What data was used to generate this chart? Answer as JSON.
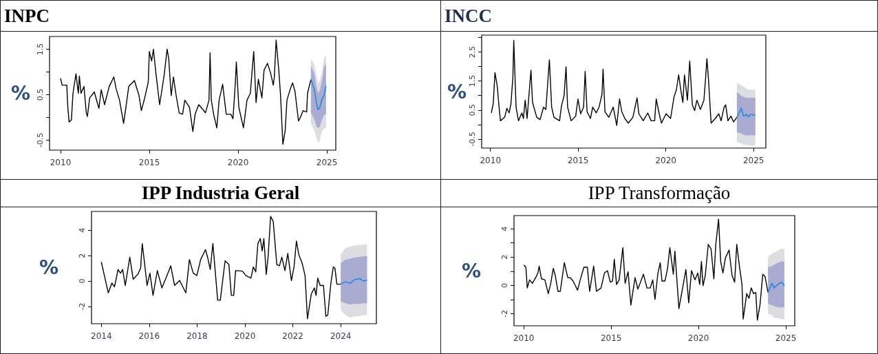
{
  "chart_data": [
    {
      "type": "line",
      "title": "INPC",
      "ylabel": "%",
      "xlim": [
        2009.38,
        2025.5
      ],
      "xticks": [
        2010,
        2015,
        2020,
        2025
      ],
      "ylim": [
        -0.72,
        1.78
      ],
      "yticks": [
        -0.5,
        {
          "value": 0,
          "label": null
        },
        0.5,
        {
          "value": 1,
          "label": null
        },
        1.5
      ],
      "series": [
        {
          "color": "#000000",
          "x": [
            2010.0,
            2010.09,
            2010.35,
            2010.4,
            2010.48,
            2010.61,
            2010.7,
            2010.87,
            2011.0,
            2011.06,
            2011.15,
            2011.32,
            2011.45,
            2011.51,
            2011.64,
            2011.9,
            2012.16,
            2012.29,
            2012.48,
            2012.74,
            2013.0,
            2013.13,
            2013.32,
            2013.55,
            2013.68,
            2013.84,
            2014.16,
            2014.42,
            2014.55,
            2014.74,
            2014.94,
            2015.0,
            2015.13,
            2015.23,
            2015.38,
            2015.58,
            2015.84,
            2016.0,
            2016.09,
            2016.23,
            2016.36,
            2016.49,
            2016.68,
            2016.87,
            2017.0,
            2017.26,
            2017.45,
            2017.58,
            2017.78,
            2018.03,
            2018.16,
            2018.36,
            2018.42,
            2018.49,
            2018.62,
            2018.8,
            2018.93,
            2019.13,
            2019.33,
            2019.59,
            2019.71,
            2019.84,
            2019.9,
            2020.04,
            2020.3,
            2020.5,
            2020.69,
            2020.75,
            2020.88,
            2021.01,
            2021.14,
            2021.34,
            2021.46,
            2021.65,
            2021.82,
            2021.98,
            2022.04,
            2022.14,
            2022.3,
            2022.39,
            2022.52,
            2022.65,
            2022.75,
            2022.94,
            2023.07,
            2023.2,
            2023.4,
            2023.53,
            2023.66,
            2023.86,
            2023.91,
            2024.1
          ],
          "values": [
            0.86,
            0.71,
            0.71,
            0.28,
            -0.1,
            -0.06,
            0.53,
            0.96,
            0.53,
            0.91,
            0.53,
            0.68,
            0.1,
            0.02,
            0.43,
            0.56,
            0.2,
            0.61,
            0.28,
            0.68,
            0.89,
            0.63,
            0.38,
            -0.13,
            0.22,
            0.68,
            0.81,
            0.48,
            0.15,
            0.43,
            0.78,
            1.45,
            1.24,
            1.5,
            0.94,
            0.28,
            0.94,
            1.5,
            1.3,
            0.48,
            0.89,
            0.53,
            0.1,
            0.07,
            0.38,
            0.22,
            -0.31,
            0.07,
            0.28,
            0.17,
            0.1,
            0.38,
            1.42,
            0.38,
            0.07,
            -0.23,
            0.38,
            0.73,
            0.07,
            0.07,
            -0.03,
            0.73,
            1.22,
            0.22,
            -0.23,
            0.38,
            0.53,
            0.84,
            1.45,
            0.33,
            0.84,
            0.43,
            1.04,
            1.19,
            0.99,
            0.71,
            0.89,
            1.7,
            0.99,
            0.48,
            -0.59,
            -0.29,
            0.38,
            0.63,
            0.76,
            0.58,
            -0.08,
            0.02,
            0.15,
            0.12,
            0.53,
            0.84
          ]
        },
        {
          "color": "#2b8ce0",
          "x": [
            2024.1,
            2024.3,
            2024.42,
            2024.5,
            2024.6,
            2024.72,
            2024.83,
            2024.95
          ],
          "values": [
            0.84,
            0.6,
            0.3,
            0.17,
            0.22,
            0.4,
            0.48,
            0.69
          ],
          "lower": [
            -0.13,
            -0.3,
            -0.45,
            -0.57,
            -0.5,
            -0.3,
            -0.25,
            -0.23
          ],
          "upper": [
            1.3,
            1.15,
            0.9,
            0.75,
            0.8,
            1.0,
            1.3,
            1.37
          ]
        },
        {
          "color": "#2b8ce0",
          "x": [
            2024.1,
            2024.3,
            2024.42,
            2024.5,
            2024.6,
            2024.72,
            2024.83,
            2024.95
          ],
          "values": [
            0.84,
            0.6,
            0.3,
            0.17,
            0.22,
            0.4,
            0.48,
            0.69
          ],
          "lower": [
            0.1,
            -0.05,
            -0.2,
            -0.23,
            -0.2,
            -0.05,
            0.05,
            0.07
          ],
          "upper": [
            1.14,
            0.95,
            0.65,
            0.53,
            0.6,
            0.8,
            1.1,
            1.19
          ]
        }
      ]
    },
    {
      "type": "line",
      "title": "INCC",
      "ylabel": "%",
      "xlim": [
        2009.5,
        2025.7
      ],
      "xticks": [
        2010,
        2015,
        2020,
        2025
      ],
      "ylim": [
        -0.81,
        3.08
      ],
      "yticks": [
        -0.5,
        {
          "value": 0,
          "label": null
        },
        0.5,
        {
          "value": 1,
          "label": null
        },
        1.5,
        {
          "value": 2,
          "label": null
        },
        2.5,
        {
          "value": 3,
          "label": null
        }
      ],
      "series": [
        {
          "color": "#000000",
          "x": [
            2010.05,
            2010.16,
            2010.26,
            2010.39,
            2010.48,
            2010.57,
            2010.81,
            2010.94,
            2011.07,
            2011.17,
            2011.28,
            2011.33,
            2011.46,
            2011.6,
            2011.79,
            2011.88,
            2011.98,
            2012.09,
            2012.31,
            2012.4,
            2012.64,
            2012.83,
            2013.03,
            2013.16,
            2013.36,
            2013.49,
            2013.62,
            2013.94,
            2014.05,
            2014.2,
            2014.31,
            2014.4,
            2014.6,
            2014.86,
            2014.99,
            2015.14,
            2015.31,
            2015.4,
            2015.51,
            2015.7,
            2015.83,
            2016.03,
            2016.19,
            2016.36,
            2016.42,
            2016.53,
            2016.75,
            2017.0,
            2017.2,
            2017.36,
            2017.49,
            2017.66,
            2017.86,
            2018.12,
            2018.36,
            2018.46,
            2018.71,
            2018.97,
            2019.16,
            2019.36,
            2019.45,
            2019.62,
            2019.75,
            2020.01,
            2020.27,
            2020.47,
            2020.6,
            2020.73,
            2020.86,
            2020.97,
            2021.06,
            2021.23,
            2021.36,
            2021.51,
            2021.64,
            2021.77,
            2021.97,
            2022.17,
            2022.27,
            2022.34,
            2022.43,
            2022.58,
            2022.82,
            2023.02,
            2023.15,
            2023.32,
            2023.41,
            2023.54,
            2023.71,
            2023.86,
            2024.05
          ],
          "values": [
            0.4,
            0.72,
            1.79,
            1.32,
            0.68,
            0.13,
            0.25,
            0.56,
            0.4,
            0.72,
            1.63,
            2.9,
            0.6,
            0.13,
            0.4,
            0.21,
            0.84,
            0.21,
            1.87,
            0.76,
            0.25,
            0.17,
            0.6,
            0.52,
            2.23,
            0.6,
            0.25,
            0.13,
            0.64,
            1.0,
            1.99,
            0.6,
            0.13,
            0.29,
            0.88,
            0.37,
            0.6,
            1.83,
            0.44,
            0.21,
            0.6,
            0.4,
            0.6,
            1.04,
            1.91,
            0.44,
            0.25,
            0.6,
            -0.03,
            0.88,
            0.44,
            0.21,
            0.05,
            0.25,
            0.92,
            0.37,
            0.13,
            0.4,
            0.13,
            0.13,
            0.88,
            0.37,
            0.05,
            0.37,
            0.21,
            0.96,
            1.2,
            1.71,
            1.16,
            0.76,
            1.71,
            0.84,
            2.19,
            0.68,
            0.48,
            0.84,
            0.52,
            0.84,
            1.63,
            2.27,
            1.56,
            0.05,
            0.21,
            0.37,
            0.13,
            0.6,
            0.68,
            0.13,
            0.29,
            0.09,
            0.25
          ]
        },
        {
          "color": "#2b8ce0",
          "x": [
            2024.05,
            2024.3,
            2024.43,
            2024.58,
            2024.71,
            2024.84,
            2025.1
          ],
          "values": [
            0.25,
            0.56,
            0.29,
            0.35,
            0.27,
            0.35,
            0.32
          ],
          "lower": [
            -0.6,
            -0.65,
            -0.7,
            -0.7,
            -0.72,
            -0.72,
            -0.72
          ],
          "upper": [
            1.44,
            1.35,
            1.3,
            1.25,
            1.2,
            1.2,
            1.2
          ]
        },
        {
          "color": "#2b8ce0",
          "x": [
            2024.05,
            2024.3,
            2024.43,
            2024.58,
            2024.71,
            2024.84,
            2025.1
          ],
          "values": [
            0.25,
            0.56,
            0.29,
            0.35,
            0.27,
            0.35,
            0.32
          ],
          "lower": [
            -0.27,
            -0.3,
            -0.35,
            -0.37,
            -0.37,
            -0.37,
            -0.37
          ],
          "upper": [
            1.12,
            1.0,
            0.95,
            0.92,
            0.92,
            0.92,
            0.92
          ]
        }
      ]
    },
    {
      "type": "line",
      "title": "IPP Industria Geral",
      "ylabel": "%",
      "xlim": [
        2013.59,
        2025.49
      ],
      "xticks": [
        2014,
        2016,
        2018,
        2020,
        2022,
        2024
      ],
      "ylim": [
        -3.36,
        5.48
      ],
      "yticks": [
        -2,
        0,
        2,
        4
      ],
      "series": [
        {
          "color": "#000000",
          "x": [
            2014.0,
            2014.29,
            2014.44,
            2014.55,
            2014.7,
            2014.8,
            2014.89,
            2015.0,
            2015.19,
            2015.33,
            2015.52,
            2015.64,
            2015.71,
            2015.83,
            2015.91,
            2016.03,
            2016.16,
            2016.34,
            2016.53,
            2016.7,
            2016.9,
            2017.06,
            2017.27,
            2017.53,
            2017.68,
            2017.84,
            2017.99,
            2018.15,
            2018.35,
            2018.45,
            2018.55,
            2018.66,
            2018.86,
            2018.97,
            2019.17,
            2019.33,
            2019.43,
            2019.53,
            2019.61,
            2019.89,
            2020.04,
            2020.25,
            2020.35,
            2020.45,
            2020.54,
            2020.64,
            2020.72,
            2020.79,
            2020.89,
            2020.97,
            2021.07,
            2021.18,
            2021.33,
            2021.44,
            2021.54,
            2021.67,
            2021.79,
            2021.94,
            2022.05,
            2022.15,
            2022.25,
            2022.39,
            2022.51,
            2022.61,
            2022.77,
            2022.9,
            2022.97,
            2023.04,
            2023.14,
            2023.28,
            2023.38,
            2023.46,
            2023.59,
            2023.69,
            2023.76,
            2023.84,
            2024.0
          ],
          "values": [
            1.5,
            -0.93,
            -0.16,
            -0.45,
            0.91,
            0.62,
            0.91,
            -0.35,
            1.88,
            0.14,
            0.52,
            1.0,
            2.95,
            1.0,
            -0.35,
            0.62,
            -1.13,
            0.82,
            -0.54,
            0.23,
            1.2,
            -0.35,
            0.04,
            -0.93,
            1.69,
            0.62,
            0.43,
            1.69,
            2.47,
            1.79,
            0.91,
            2.95,
            -1.51,
            -1.51,
            1.59,
            1.3,
            -1.13,
            -1.13,
            0.82,
            0.78,
            0.43,
            0.23,
            1.11,
            0.72,
            2.95,
            3.34,
            2.37,
            3.34,
            0.52,
            1.98,
            5.09,
            4.7,
            1.3,
            1.2,
            1.88,
            0.82,
            2.17,
            0.04,
            1.11,
            3.15,
            2.08,
            1.4,
            0.43,
            -2.97,
            -1.03,
            -0.54,
            -1.13,
            0.23,
            -0.35,
            -0.35,
            -2.78,
            -2.68,
            -0.16,
            1.11,
            1.0,
            -0.25,
            -0.25
          ]
        },
        {
          "color": "#2b8ce0",
          "x": [
            2024.0,
            2024.2,
            2024.4,
            2024.55,
            2024.8,
            2024.95,
            2025.1
          ],
          "values": [
            -0.25,
            -0.06,
            -0.19,
            0.08,
            0.19,
            0,
            0.08
          ],
          "lower": [
            -2.3,
            -2.7,
            -2.9,
            -2.8,
            -2.75,
            -2.7,
            -2.7
          ],
          "upper": [
            2.1,
            2.6,
            2.7,
            2.8,
            2.85,
            2.85,
            2.9
          ]
        },
        {
          "color": "#2b8ce0",
          "x": [
            2024.0,
            2024.2,
            2024.4,
            2024.55,
            2024.8,
            2024.95,
            2025.1
          ],
          "values": [
            -0.25,
            -0.06,
            -0.19,
            0.08,
            0.19,
            0,
            0.08
          ],
          "lower": [
            -1.6,
            -1.75,
            -1.85,
            -1.8,
            -1.8,
            -1.75,
            -1.75
          ],
          "upper": [
            1.4,
            1.7,
            1.75,
            1.85,
            1.9,
            1.95,
            1.95
          ]
        }
      ]
    },
    {
      "type": "line",
      "title": "IPP Transformação",
      "ylabel": "%",
      "xlim": [
        2009.44,
        2025.51
      ],
      "xticks": [
        2010,
        2015,
        2020,
        2025
      ],
      "ylim": [
        -2.85,
        4.93
      ],
      "yticks": [
        -2,
        {
          "value": -1,
          "label": null
        },
        0,
        {
          "value": 1,
          "label": null
        },
        2,
        {
          "value": 3,
          "label": null
        },
        4
      ],
      "series": [
        {
          "color": "#000000",
          "x": [
            2010.0,
            2010.12,
            2010.2,
            2010.33,
            2010.49,
            2010.68,
            2010.81,
            2010.88,
            2011.01,
            2011.21,
            2011.4,
            2011.53,
            2011.69,
            2011.8,
            2011.96,
            2012.09,
            2012.32,
            2012.52,
            2012.65,
            2012.82,
            2013.08,
            2013.23,
            2013.44,
            2013.64,
            2013.77,
            2014.0,
            2014.16,
            2014.42,
            2014.62,
            2014.79,
            2014.95,
            2015.08,
            2015.18,
            2015.31,
            2015.46,
            2015.67,
            2015.8,
            2015.97,
            2016.13,
            2016.37,
            2016.53,
            2016.85,
            2017.05,
            2017.24,
            2017.38,
            2017.51,
            2017.68,
            2017.81,
            2017.91,
            2018.08,
            2018.23,
            2018.36,
            2018.56,
            2018.65,
            2018.88,
            2019.28,
            2019.44,
            2019.6,
            2019.8,
            2019.96,
            2020.07,
            2020.17,
            2020.26,
            2020.39,
            2020.56,
            2020.72,
            2020.88,
            2020.99,
            2021.15,
            2021.27,
            2021.4,
            2021.54,
            2021.75,
            2021.92,
            2022.07,
            2022.19,
            2022.36,
            2022.49,
            2022.56,
            2022.76,
            2022.89,
            2023.02,
            2023.15,
            2023.28,
            2023.37,
            2023.52,
            2023.68,
            2023.81,
            2023.98
          ],
          "values": [
            1.44,
            1.28,
            -0.18,
            0.39,
            0.15,
            0.55,
            0.88,
            1.36,
            0.47,
            0.39,
            -0.58,
            0.06,
            1.2,
            0.71,
            -0.42,
            -0.42,
            1.6,
            0.55,
            0.55,
            0.31,
            -0.34,
            0.39,
            1.28,
            1.28,
            -0.42,
            1.36,
            -0.42,
            -0.18,
            0.88,
            1.04,
            0.23,
            0.31,
            1.85,
            0.06,
            0.39,
            2.66,
            0.15,
            0.96,
            -1.39,
            0.55,
            -0.26,
            0.79,
            -0.18,
            -0.18,
            0.39,
            -0.99,
            0.88,
            1.6,
            0.31,
            0.31,
            1.2,
            2.66,
            0.79,
            2.41,
            -1.64,
            1.12,
            -1.23,
            1.04,
            0.39,
            0.88,
            0.06,
            1.69,
            -0.02,
            0.71,
            2.9,
            2.58,
            0.47,
            2.9,
            4.68,
            1.69,
            0.88,
            1.93,
            2.5,
            0.71,
            0.23,
            2.9,
            1.2,
            0.06,
            -2.37,
            -0.58,
            -0.91,
            -0.18,
            -0.58,
            -0.5,
            -2.45,
            -1.39,
            0.79,
            0.63,
            -0.5
          ]
        },
        {
          "color": "#2b8ce0",
          "x": [
            2023.98,
            2024.2,
            2024.33,
            2024.53,
            2024.76,
            2024.92
          ],
          "values": [
            -0.5,
            0.15,
            -0.18,
            0.06,
            0.23,
            -0.02
          ],
          "lower": [
            -2.0,
            -2.1,
            -2.3,
            -2.3,
            -2.4,
            -2.37
          ],
          "upper": [
            2.0,
            2.25,
            2.3,
            2.45,
            2.6,
            2.55
          ]
        },
        {
          "color": "#2b8ce0",
          "x": [
            2023.98,
            2024.2,
            2024.33,
            2024.53,
            2024.76,
            2024.92
          ],
          "values": [
            -0.5,
            0.15,
            -0.18,
            0.06,
            0.23,
            -0.02
          ],
          "lower": [
            -1.3,
            -1.4,
            -1.45,
            -1.55,
            -1.56,
            -1.5
          ],
          "upper": [
            1.3,
            1.36,
            1.45,
            1.6,
            1.7,
            1.65
          ]
        }
      ]
    }
  ]
}
